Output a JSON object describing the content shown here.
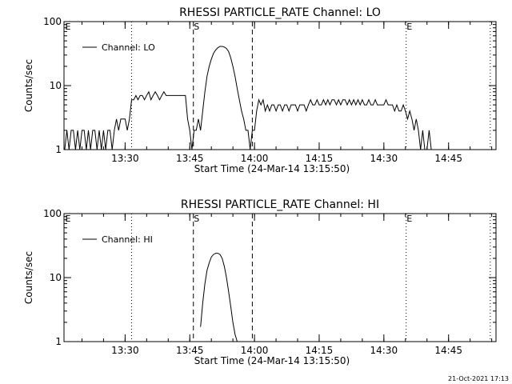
{
  "footer": {
    "timestamp": "21-Oct-2021 17:13"
  },
  "chart_data": [
    {
      "type": "line",
      "title": "RHESSI PARTICLE_RATE Channel: LO",
      "xlabel": "Start Time (24-Mar-14 13:15:50)",
      "ylabel": "Counts/sec",
      "yscale": "log",
      "ylim": [
        1,
        100
      ],
      "yticks": [
        {
          "value": 1,
          "label": "1"
        },
        {
          "value": 10,
          "label": "10"
        },
        {
          "value": 100,
          "label": "100"
        }
      ],
      "xlim": [
        "13:15:50",
        "14:56:00"
      ],
      "xticks": [
        "13:30",
        "13:45",
        "14:00",
        "14:15",
        "14:30",
        "14:45"
      ],
      "legend": {
        "position": "top-left",
        "entries": [
          "Channel: LO"
        ]
      },
      "markers": [
        {
          "time": "13:31:30",
          "style": "dotted",
          "label": ""
        },
        {
          "time": "13:45:50",
          "style": "dashed",
          "label": "S"
        },
        {
          "time": "13:59:30",
          "style": "dashed",
          "label": ""
        },
        {
          "time": "14:35:10",
          "style": "dotted",
          "label": "E"
        },
        {
          "time": "14:54:40",
          "style": "dotted",
          "label": ""
        }
      ],
      "corner_labels": [
        "E"
      ],
      "series": [
        {
          "name": "Channel: LO",
          "points": [
            [
              "13:16:00",
              1
            ],
            [
              "13:16:30",
              2
            ],
            [
              "13:17:00",
              1
            ],
            [
              "13:17:30",
              2
            ],
            [
              "13:18:00",
              2
            ],
            [
              "13:18:30",
              1
            ],
            [
              "13:19:00",
              2
            ],
            [
              "13:19:30",
              1
            ],
            [
              "13:20:00",
              2
            ],
            [
              "13:20:30",
              2
            ],
            [
              "13:21:00",
              1
            ],
            [
              "13:21:30",
              2
            ],
            [
              "13:22:00",
              1
            ],
            [
              "13:22:30",
              2
            ],
            [
              "13:23:00",
              2
            ],
            [
              "13:23:30",
              1
            ],
            [
              "13:24:00",
              2
            ],
            [
              "13:24:30",
              1
            ],
            [
              "13:25:00",
              2
            ],
            [
              "13:25:30",
              1
            ],
            [
              "13:26:00",
              2
            ],
            [
              "13:26:30",
              2
            ],
            [
              "13:27:00",
              1
            ],
            [
              "13:27:30",
              2
            ],
            [
              "13:28:00",
              3
            ],
            [
              "13:28:30",
              2
            ],
            [
              "13:29:00",
              3
            ],
            [
              "13:29:30",
              3
            ],
            [
              "13:30:00",
              3
            ],
            [
              "13:30:30",
              2
            ],
            [
              "13:31:00",
              3
            ],
            [
              "13:31:30",
              6
            ],
            [
              "13:32:00",
              6
            ],
            [
              "13:32:30",
              7
            ],
            [
              "13:33:00",
              6
            ],
            [
              "13:33:30",
              7
            ],
            [
              "13:34:00",
              7
            ],
            [
              "13:34:30",
              6
            ],
            [
              "13:35:00",
              7
            ],
            [
              "13:35:30",
              8
            ],
            [
              "13:36:00",
              6
            ],
            [
              "13:36:30",
              7
            ],
            [
              "13:37:00",
              8
            ],
            [
              "13:37:30",
              7
            ],
            [
              "13:38:00",
              6
            ],
            [
              "13:38:30",
              7
            ],
            [
              "13:39:00",
              8
            ],
            [
              "13:39:30",
              7
            ],
            [
              "13:40:00",
              7
            ],
            [
              "13:40:30",
              7
            ],
            [
              "13:41:00",
              7
            ],
            [
              "13:41:30",
              7
            ],
            [
              "13:42:00",
              7
            ],
            [
              "13:42:30",
              7
            ],
            [
              "13:43:00",
              7
            ],
            [
              "13:43:30",
              7
            ],
            [
              "13:44:00",
              7
            ],
            [
              "13:44:30",
              3
            ],
            [
              "13:45:00",
              2
            ],
            [
              "13:45:30",
              1
            ],
            [
              "13:46:00",
              2
            ],
            [
              "13:46:30",
              2
            ],
            [
              "13:47:00",
              3
            ],
            [
              "13:47:30",
              2
            ],
            [
              "13:48:00",
              4
            ],
            [
              "13:48:30",
              8
            ],
            [
              "13:49:00",
              14
            ],
            [
              "13:49:30",
              20
            ],
            [
              "13:50:00",
              26
            ],
            [
              "13:50:30",
              32
            ],
            [
              "13:51:00",
              36
            ],
            [
              "13:51:30",
              39
            ],
            [
              "13:52:00",
              41
            ],
            [
              "13:52:30",
              41
            ],
            [
              "13:53:00",
              40
            ],
            [
              "13:53:30",
              38
            ],
            [
              "13:54:00",
              34
            ],
            [
              "13:54:30",
              27
            ],
            [
              "13:55:00",
              20
            ],
            [
              "13:55:30",
              14
            ],
            [
              "13:56:00",
              9
            ],
            [
              "13:56:30",
              6
            ],
            [
              "13:57:00",
              4
            ],
            [
              "13:57:30",
              3
            ],
            [
              "13:58:00",
              2
            ],
            [
              "13:58:30",
              2
            ],
            [
              "13:59:00",
              1
            ],
            [
              "13:59:30",
              2
            ],
            [
              "14:00:00",
              2
            ],
            [
              "14:00:30",
              4
            ],
            [
              "14:01:00",
              6
            ],
            [
              "14:01:30",
              5
            ],
            [
              "14:02:00",
              6
            ],
            [
              "14:02:30",
              4
            ],
            [
              "14:03:00",
              5
            ],
            [
              "14:03:30",
              4
            ],
            [
              "14:04:00",
              5
            ],
            [
              "14:04:30",
              5
            ],
            [
              "14:05:00",
              4
            ],
            [
              "14:05:30",
              5
            ],
            [
              "14:06:00",
              5
            ],
            [
              "14:06:30",
              4
            ],
            [
              "14:07:00",
              5
            ],
            [
              "14:07:30",
              5
            ],
            [
              "14:08:00",
              4
            ],
            [
              "14:08:30",
              5
            ],
            [
              "14:09:00",
              5
            ],
            [
              "14:09:30",
              5
            ],
            [
              "14:10:00",
              4
            ],
            [
              "14:10:30",
              5
            ],
            [
              "14:11:00",
              5
            ],
            [
              "14:11:30",
              5
            ],
            [
              "14:12:00",
              4
            ],
            [
              "14:12:30",
              5
            ],
            [
              "14:13:00",
              6
            ],
            [
              "14:13:30",
              5
            ],
            [
              "14:14:00",
              5
            ],
            [
              "14:14:30",
              6
            ],
            [
              "14:15:00",
              5
            ],
            [
              "14:15:30",
              5
            ],
            [
              "14:16:00",
              6
            ],
            [
              "14:16:30",
              5
            ],
            [
              "14:17:00",
              6
            ],
            [
              "14:17:30",
              5
            ],
            [
              "14:18:00",
              6
            ],
            [
              "14:18:30",
              6
            ],
            [
              "14:19:00",
              5
            ],
            [
              "14:19:30",
              6
            ],
            [
              "14:20:00",
              5
            ],
            [
              "14:20:30",
              6
            ],
            [
              "14:21:00",
              6
            ],
            [
              "14:21:30",
              5
            ],
            [
              "14:22:00",
              6
            ],
            [
              "14:22:30",
              5
            ],
            [
              "14:23:00",
              6
            ],
            [
              "14:23:30",
              5
            ],
            [
              "14:24:00",
              6
            ],
            [
              "14:24:30",
              5
            ],
            [
              "14:25:00",
              6
            ],
            [
              "14:25:30",
              5
            ],
            [
              "14:26:00",
              5
            ],
            [
              "14:26:30",
              6
            ],
            [
              "14:27:00",
              5
            ],
            [
              "14:27:30",
              5
            ],
            [
              "14:28:00",
              6
            ],
            [
              "14:28:30",
              5
            ],
            [
              "14:29:00",
              5
            ],
            [
              "14:29:30",
              5
            ],
            [
              "14:30:00",
              5
            ],
            [
              "14:30:30",
              6
            ],
            [
              "14:31:00",
              5
            ],
            [
              "14:31:30",
              5
            ],
            [
              "14:32:00",
              5
            ],
            [
              "14:32:30",
              4
            ],
            [
              "14:33:00",
              5
            ],
            [
              "14:33:30",
              4
            ],
            [
              "14:34:00",
              4
            ],
            [
              "14:34:30",
              5
            ],
            [
              "14:35:00",
              4
            ],
            [
              "14:35:30",
              3
            ],
            [
              "14:36:00",
              4
            ],
            [
              "14:36:30",
              3
            ],
            [
              "14:37:00",
              2
            ],
            [
              "14:37:30",
              3
            ],
            [
              "14:38:00",
              2
            ],
            [
              "14:38:30",
              1
            ],
            [
              "14:39:00",
              2
            ],
            [
              "14:39:30",
              1
            ],
            [
              "14:40:00",
              1
            ],
            [
              "14:40:30",
              2
            ],
            [
              "14:41:00",
              1
            ],
            [
              "14:41:30",
              1
            ],
            [
              "14:42:00",
              1
            ],
            [
              "14:42:30",
              1
            ]
          ]
        }
      ]
    },
    {
      "type": "line",
      "title": "RHESSI PARTICLE_RATE Channel: HI",
      "xlabel": "Start Time (24-Mar-14 13:15:50)",
      "ylabel": "Counts/sec",
      "yscale": "log",
      "ylim": [
        1,
        100
      ],
      "yticks": [
        {
          "value": 1,
          "label": "1"
        },
        {
          "value": 10,
          "label": "10"
        },
        {
          "value": 100,
          "label": "100"
        }
      ],
      "xlim": [
        "13:15:50",
        "14:56:00"
      ],
      "xticks": [
        "13:30",
        "13:45",
        "14:00",
        "14:15",
        "14:30",
        "14:45"
      ],
      "legend": {
        "position": "top-left",
        "entries": [
          "Channel: HI"
        ]
      },
      "markers": [
        {
          "time": "13:31:30",
          "style": "dotted",
          "label": ""
        },
        {
          "time": "13:45:50",
          "style": "dashed",
          "label": "S"
        },
        {
          "time": "13:59:30",
          "style": "dashed",
          "label": ""
        },
        {
          "time": "14:35:10",
          "style": "dotted",
          "label": "E"
        },
        {
          "time": "14:54:40",
          "style": "dotted",
          "label": ""
        }
      ],
      "corner_labels": [
        "E"
      ],
      "series": [
        {
          "name": "Channel: HI",
          "points": [
            [
              "13:47:30",
              1.7
            ],
            [
              "13:48:00",
              4
            ],
            [
              "13:48:30",
              8
            ],
            [
              "13:49:00",
              13
            ],
            [
              "13:49:30",
              17
            ],
            [
              "13:50:00",
              21
            ],
            [
              "13:50:30",
              23
            ],
            [
              "13:51:00",
              24
            ],
            [
              "13:51:30",
              24
            ],
            [
              "13:52:00",
              23
            ],
            [
              "13:52:30",
              20
            ],
            [
              "13:53:00",
              15
            ],
            [
              "13:53:30",
              10
            ],
            [
              "13:54:00",
              6
            ],
            [
              "13:54:30",
              3.5
            ],
            [
              "13:55:00",
              2
            ],
            [
              "13:55:30",
              1.3
            ],
            [
              "13:56:00",
              1
            ]
          ]
        }
      ]
    }
  ]
}
